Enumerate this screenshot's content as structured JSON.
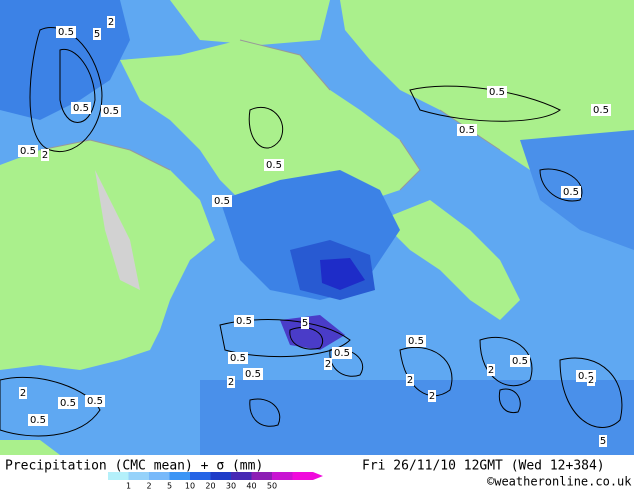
{
  "map": {
    "contour_labels": [
      "0.5",
      "5",
      "2",
      "0.5",
      "0.5",
      "0.5",
      "2",
      "0.5",
      "0.5",
      "0.5",
      "0.5",
      "0.5",
      "0.5",
      "0.5",
      "5",
      "0.5",
      "2",
      "0.5",
      "2",
      "0.5",
      "0.5",
      "0.5",
      "2",
      "2",
      "2",
      "0.5",
      "2",
      "2",
      "0.5",
      "0.5",
      "0.5",
      "5"
    ]
  },
  "footer": {
    "title": "Precipitation (CMC mean) + σ (mm)",
    "timestamp": "Fri 26/11/10 12GMT  (Wed 12+384)",
    "legend": {
      "labels": [
        1,
        2,
        5,
        10,
        20,
        30,
        40,
        50
      ]
    },
    "credit": "©weatheronline.co.uk"
  }
}
